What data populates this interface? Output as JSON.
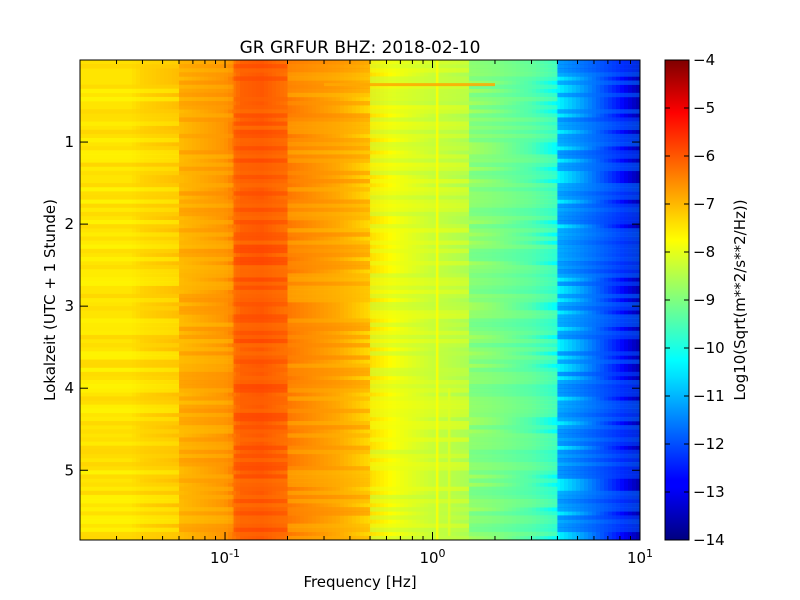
{
  "chart_data": {
    "type": "heatmap",
    "title": "GR GRFUR BHZ: 2018-02-10",
    "xlabel": "Frequency [Hz]",
    "ylabel": "Lokalzeit (UTC + 1 Stunde)",
    "x_scale": "log",
    "xlim": [
      0.02,
      10
    ],
    "ylim": [
      5.85,
      0
    ],
    "x_tick_labels": [
      {
        "base": "10",
        "exp": "-1",
        "value": 0.1
      },
      {
        "base": "10",
        "exp": "0",
        "value": 1
      },
      {
        "base": "10",
        "exp": "1",
        "value": 10
      }
    ],
    "y_ticks": [
      1,
      2,
      3,
      4,
      5
    ],
    "colorbar": {
      "label": "Log10(Sqrt(m**2/s**2/Hz))",
      "colormap": "jet",
      "range": [
        -14,
        -4
      ],
      "ticks": [
        -4,
        -5,
        -6,
        -7,
        -8,
        -9,
        -10,
        -11,
        -12,
        -13,
        -14
      ]
    },
    "frequency_profile": {
      "x": [
        0.02,
        0.035,
        0.04,
        0.06,
        0.1,
        0.12,
        0.15,
        0.18,
        0.25,
        0.35,
        0.5,
        0.7,
        1.0,
        1.5,
        2.0,
        3.0,
        4.0,
        5.0,
        6.0,
        8.0,
        10.0
      ],
      "values": [
        -7.5,
        -7.5,
        -7.3,
        -7.1,
        -6.7,
        -6.2,
        -6.1,
        -6.3,
        -6.6,
        -6.9,
        -7.4,
        -7.9,
        -8.3,
        -8.6,
        -8.9,
        -9.5,
        -10.3,
        -11.0,
        -11.6,
        -12.6,
        -13.6
      ]
    },
    "annotations": [
      {
        "type": "vertical-line",
        "x": 1.05,
        "value": -7.8
      },
      {
        "type": "vertical-line",
        "x": 1.2,
        "y_start": 4.0,
        "y_end": 5.8,
        "value": -8.1
      },
      {
        "type": "horizontal-streak",
        "y": 0.3,
        "x_start": 0.3,
        "x_end": 2.0,
        "value": -6.9
      }
    ]
  }
}
